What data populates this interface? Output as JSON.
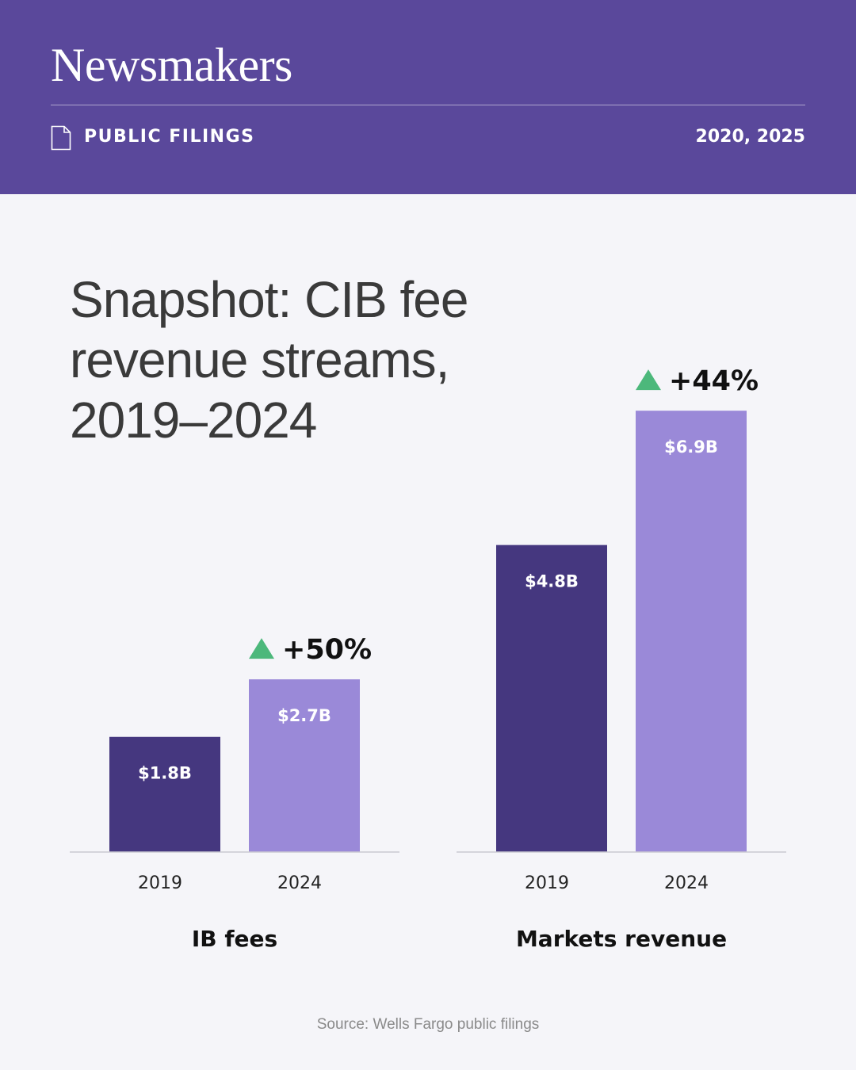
{
  "header": {
    "brand": "Newsmakers",
    "section_label": "PUBLIC FILINGS",
    "section_icon": "document-icon",
    "years": "2020, 2025"
  },
  "title_lines": [
    "Snapshot: CIB fee",
    "revenue streams,",
    "2019–2024"
  ],
  "source": "Source: Wells Fargo public filings",
  "colors": {
    "header_bg": "#5a489b",
    "bar_2019": "#45377f",
    "bar_2024": "#9a89d8",
    "up_arrow": "#4cb87b",
    "axis": "#c9c9d1"
  },
  "chart_data": [
    {
      "type": "bar",
      "title": "IB fees",
      "categories": [
        "2019",
        "2024"
      ],
      "values": [
        1.8,
        2.7
      ],
      "value_labels": [
        "$1.8B",
        "$2.7B"
      ],
      "change_label": "+50%",
      "ylim": [
        0,
        7.5
      ]
    },
    {
      "type": "bar",
      "title": "Markets revenue",
      "categories": [
        "2019",
        "2024"
      ],
      "values": [
        4.8,
        6.9
      ],
      "value_labels": [
        "$4.8B",
        "$6.9B"
      ],
      "change_label": "+44%",
      "ylim": [
        0,
        7.5
      ]
    }
  ]
}
